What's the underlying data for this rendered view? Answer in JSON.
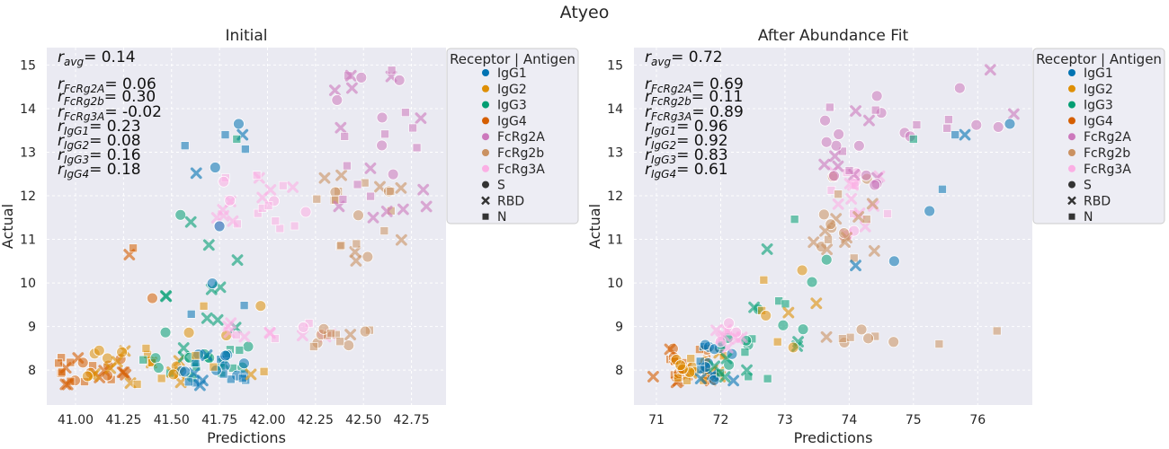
{
  "suptitle": "Atyeo",
  "axis_labels": {
    "x": "Predictions",
    "y": "Actual"
  },
  "legend": {
    "title": "Receptor | Antigen",
    "hue": [
      {
        "label": "IgG1",
        "color": "#0173b2"
      },
      {
        "label": "IgG2",
        "color": "#de8f05"
      },
      {
        "label": "IgG3",
        "color": "#029e73"
      },
      {
        "label": "IgG4",
        "color": "#d55e00"
      },
      {
        "label": "FcRg2A",
        "color": "#cc78bc"
      },
      {
        "label": "FcRg2b",
        "color": "#ca9161"
      },
      {
        "label": "FcRg3A",
        "color": "#fbafe4"
      }
    ],
    "style": [
      {
        "label": "S",
        "marker": "circle"
      },
      {
        "label": "RBD",
        "marker": "x"
      },
      {
        "label": "N",
        "marker": "square"
      }
    ]
  },
  "chart_data": [
    {
      "type": "scatter",
      "title": "Initial",
      "xlabel": "Predictions",
      "ylabel": "Actual",
      "xlim": [
        40.85,
        42.93
      ],
      "ylim": [
        7.2,
        15.4
      ],
      "xticks": [
        "41.00",
        "41.25",
        "41.50",
        "41.75",
        "42.00",
        "42.25",
        "42.50",
        "42.75"
      ],
      "yticks": [
        "8",
        "9",
        "10",
        "11",
        "12",
        "13",
        "14",
        "15"
      ],
      "grid": true,
      "legend_position": "outside right",
      "annotations": [
        {
          "sub": "avg",
          "value": "0.14"
        },
        {
          "sub": "FcRg2A",
          "value": "0.06"
        },
        {
          "sub": "FcRg2b",
          "value": "0.30"
        },
        {
          "sub": "FcRg3A",
          "value": "-0.02"
        },
        {
          "sub": "IgG1",
          "value": "0.23"
        },
        {
          "sub": "IgG2",
          "value": "0.08"
        },
        {
          "sub": "IgG3",
          "value": "0.16"
        },
        {
          "sub": "IgG4",
          "value": "0.18"
        }
      ],
      "clusters": [
        {
          "series": "IgG4",
          "x": [
            40.9,
            41.3
          ],
          "y": [
            7.65,
            8.3
          ],
          "n": 24
        },
        {
          "series": "IgG2",
          "x": [
            41.05,
            41.55
          ],
          "y": [
            7.65,
            8.5
          ],
          "n": 22
        },
        {
          "series": "IgG3",
          "x": [
            41.35,
            41.9
          ],
          "y": [
            7.7,
            8.6
          ],
          "n": 22
        },
        {
          "series": "IgG1",
          "x": [
            41.55,
            41.9
          ],
          "y": [
            7.65,
            8.4
          ],
          "n": 22
        },
        {
          "series": "IgG2",
          "x": [
            41.45,
            42.0
          ],
          "y": [
            7.9,
            9.5
          ],
          "n": 10
        },
        {
          "series": "IgG3",
          "x": [
            41.45,
            41.85
          ],
          "y": [
            8.8,
            11.6
          ],
          "n": 12
        },
        {
          "series": "IgG1",
          "x": [
            41.6,
            41.9
          ],
          "y": [
            9.0,
            13.6
          ],
          "n": 6
        },
        {
          "series": "FcRg3A",
          "x": [
            41.75,
            42.35
          ],
          "y": [
            8.7,
            9.1
          ],
          "n": 14
        },
        {
          "series": "FcRg3A",
          "x": [
            41.65,
            42.2
          ],
          "y": [
            11.2,
            12.6
          ],
          "n": 24
        },
        {
          "series": "FcRg2b",
          "x": [
            42.2,
            42.6
          ],
          "y": [
            8.5,
            8.95
          ],
          "n": 12
        },
        {
          "series": "FcRg2b",
          "x": [
            42.25,
            42.7
          ],
          "y": [
            10.5,
            12.6
          ],
          "n": 22
        },
        {
          "series": "FcRg2A",
          "x": [
            42.35,
            42.85
          ],
          "y": [
            11.5,
            15.0
          ],
          "n": 30
        }
      ],
      "points": [
        {
          "series": "IgG1",
          "marker": "circle",
          "x": 41.85,
          "y": 13.65
        },
        {
          "series": "IgG1",
          "marker": "x",
          "x": 41.87,
          "y": 13.4
        },
        {
          "series": "IgG1",
          "marker": "square",
          "x": 41.57,
          "y": 13.15
        },
        {
          "series": "IgG1",
          "marker": "square",
          "x": 41.78,
          "y": 13.4
        },
        {
          "series": "IgG3",
          "marker": "square",
          "x": 41.84,
          "y": 13.3
        },
        {
          "series": "IgG4",
          "marker": "x",
          "x": 41.28,
          "y": 10.65
        },
        {
          "series": "IgG4",
          "marker": "square",
          "x": 41.3,
          "y": 10.8
        },
        {
          "series": "IgG4",
          "marker": "circle",
          "x": 41.4,
          "y": 9.65
        },
        {
          "series": "IgG1",
          "marker": "circle",
          "x": 41.75,
          "y": 11.3
        }
      ]
    },
    {
      "type": "scatter",
      "title": "After Abundance Fit",
      "xlabel": "Predictions",
      "ylabel": "Actual",
      "xlim": [
        70.65,
        76.85
      ],
      "ylim": [
        7.2,
        15.4
      ],
      "xticks": [
        "71",
        "72",
        "73",
        "74",
        "75",
        "76"
      ],
      "yticks": [
        "8",
        "9",
        "10",
        "11",
        "12",
        "13",
        "14",
        "15"
      ],
      "grid": true,
      "legend_position": "outside right",
      "annotations": [
        {
          "sub": "avg",
          "value": "0.72"
        },
        {
          "sub": "FcRg2A",
          "value": "0.69"
        },
        {
          "sub": "FcRg2b",
          "value": "0.11"
        },
        {
          "sub": "FcRg3A",
          "value": "0.89"
        },
        {
          "sub": "IgG1",
          "value": "0.96"
        },
        {
          "sub": "IgG2",
          "value": "0.92"
        },
        {
          "sub": "IgG3",
          "value": "0.83"
        },
        {
          "sub": "IgG4",
          "value": "0.61"
        }
      ],
      "clusters": [
        {
          "series": "IgG4",
          "x": [
            71.2,
            71.9
          ],
          "y": [
            7.7,
            8.5
          ],
          "n": 24
        },
        {
          "series": "IgG2",
          "x": [
            71.3,
            72.1
          ],
          "y": [
            7.65,
            8.4
          ],
          "n": 18
        },
        {
          "series": "IgG1",
          "x": [
            71.6,
            72.2
          ],
          "y": [
            7.7,
            8.6
          ],
          "n": 16
        },
        {
          "series": "IgG3",
          "x": [
            71.9,
            72.8
          ],
          "y": [
            7.8,
            9.8
          ],
          "n": 16
        },
        {
          "series": "IgG3",
          "x": [
            72.7,
            73.7
          ],
          "y": [
            8.5,
            11.5
          ],
          "n": 10
        },
        {
          "series": "IgG2",
          "x": [
            72.6,
            73.5
          ],
          "y": [
            8.5,
            10.5
          ],
          "n": 8
        },
        {
          "series": "FcRg3A",
          "x": [
            71.9,
            72.4
          ],
          "y": [
            8.5,
            9.1
          ],
          "n": 12
        },
        {
          "series": "FcRg3A",
          "x": [
            73.7,
            74.6
          ],
          "y": [
            11.0,
            12.6
          ],
          "n": 20
        },
        {
          "series": "FcRg2b",
          "x": [
            73.4,
            74.4
          ],
          "y": [
            10.5,
            12.5
          ],
          "n": 20
        },
        {
          "series": "FcRg2b",
          "x": [
            73.3,
            74.7
          ],
          "y": [
            8.6,
            9.0
          ],
          "n": 8
        },
        {
          "series": "FcRg2A",
          "x": [
            73.6,
            74.5
          ],
          "y": [
            12.2,
            14.4
          ],
          "n": 22
        },
        {
          "series": "FcRg2A",
          "x": [
            74.5,
            76.6
          ],
          "y": [
            13.0,
            15.1
          ],
          "n": 10
        }
      ],
      "points": [
        {
          "series": "IgG1",
          "marker": "circle",
          "x": 76.5,
          "y": 13.65
        },
        {
          "series": "IgG1",
          "marker": "x",
          "x": 75.8,
          "y": 13.4
        },
        {
          "series": "IgG1",
          "marker": "square",
          "x": 75.65,
          "y": 13.4
        },
        {
          "series": "IgG1",
          "marker": "circle",
          "x": 75.25,
          "y": 11.65
        },
        {
          "series": "IgG1",
          "marker": "square",
          "x": 75.45,
          "y": 12.15
        },
        {
          "series": "IgG3",
          "marker": "square",
          "x": 75.0,
          "y": 13.3
        },
        {
          "series": "IgG4",
          "marker": "x",
          "x": 70.95,
          "y": 7.85
        },
        {
          "series": "FcRg2b",
          "marker": "square",
          "x": 76.3,
          "y": 8.9
        },
        {
          "series": "FcRg2b",
          "marker": "square",
          "x": 75.4,
          "y": 8.6
        },
        {
          "series": "IgG1",
          "marker": "circle",
          "x": 74.7,
          "y": 10.5
        },
        {
          "series": "IgG1",
          "marker": "x",
          "x": 74.1,
          "y": 10.4
        }
      ]
    }
  ]
}
